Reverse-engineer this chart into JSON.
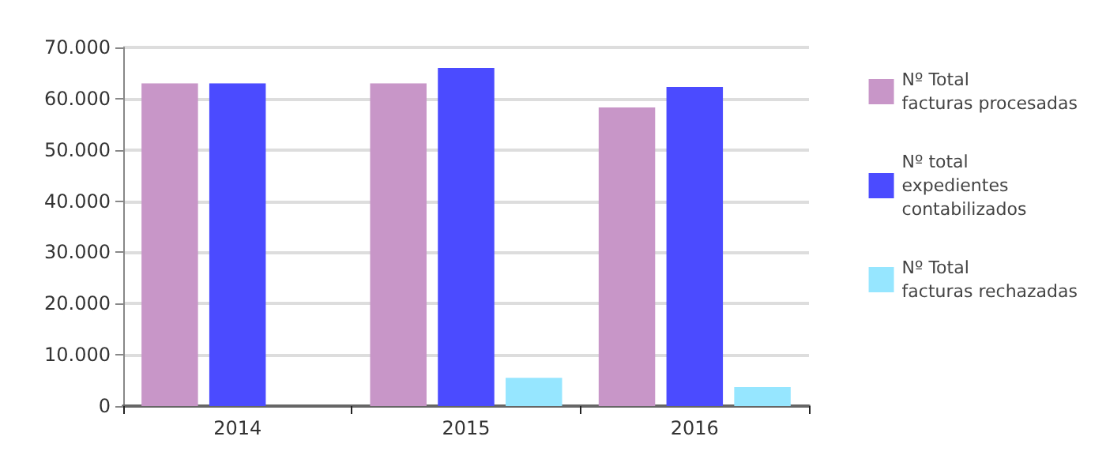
{
  "chart_data": {
    "type": "bar",
    "categories": [
      "2014",
      "2015",
      "2016"
    ],
    "series": [
      {
        "name": "Nº Total\nfacturas procesadas",
        "color": "#c896c8",
        "values": [
          63000,
          63000,
          58300
        ]
      },
      {
        "name": "Nº total\nexpedientes\ncontabilizados",
        "color": "#4b4bff",
        "values": [
          63000,
          66000,
          62300
        ]
      },
      {
        "name": "Nº Total\nfacturas rechazadas",
        "color": "#96e6ff",
        "values": [
          0,
          5500,
          3700
        ]
      }
    ],
    "ylim": [
      0,
      70000
    ],
    "yticks": [
      0,
      {
        "value": 10000,
        "label": "10.000"
      },
      {
        "value": 20000,
        "label": "20.000"
      },
      {
        "value": 30000,
        "label": "30.000"
      },
      {
        "value": 40000,
        "label": "40.000"
      },
      {
        "value": 50000,
        "label": "50.000"
      },
      {
        "value": 60000,
        "label": "60.000"
      },
      {
        "value": 70000,
        "label": "70.000"
      }
    ],
    "grid": "y",
    "legend": "right"
  }
}
